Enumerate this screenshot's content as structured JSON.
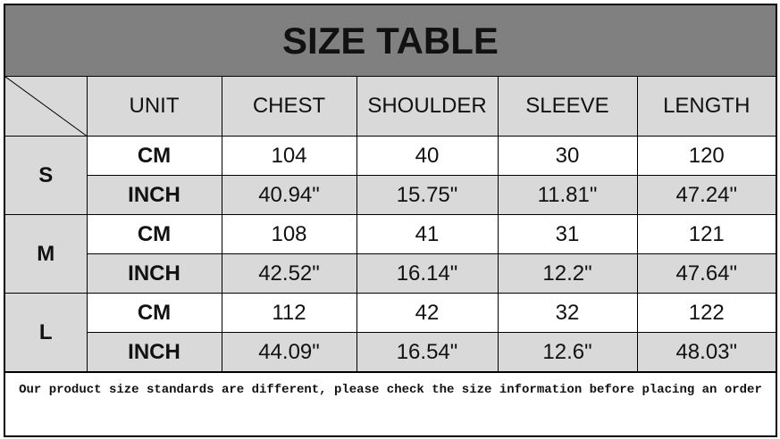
{
  "title": "SIZE TABLE",
  "headers": [
    "UNIT",
    "CHEST",
    "SHOULDER",
    "SLEEVE",
    "LENGTH"
  ],
  "rows": [
    {
      "size": "S",
      "cm": {
        "unit": "CM",
        "values": [
          "104",
          "40",
          "30",
          "120"
        ]
      },
      "inch": {
        "unit": "INCH",
        "values": [
          "40.94\"",
          "15.75\"",
          "11.81\"",
          "47.24\""
        ]
      }
    },
    {
      "size": "M",
      "cm": {
        "unit": "CM",
        "values": [
          "108",
          "41",
          "31",
          "121"
        ]
      },
      "inch": {
        "unit": "INCH",
        "values": [
          "42.52\"",
          "16.14\"",
          "12.2\"",
          "47.64\""
        ]
      }
    },
    {
      "size": "L",
      "cm": {
        "unit": "CM",
        "values": [
          "112",
          "42",
          "32",
          "122"
        ]
      },
      "inch": {
        "unit": "INCH",
        "values": [
          "44.09\"",
          "16.54\"",
          "12.6\"",
          "48.03\""
        ]
      }
    }
  ],
  "note": "Our product size standards are different, please check the size information before placing an order",
  "colors": {
    "title_bg": "#808080",
    "cell_gray": "#d9d9d9"
  }
}
